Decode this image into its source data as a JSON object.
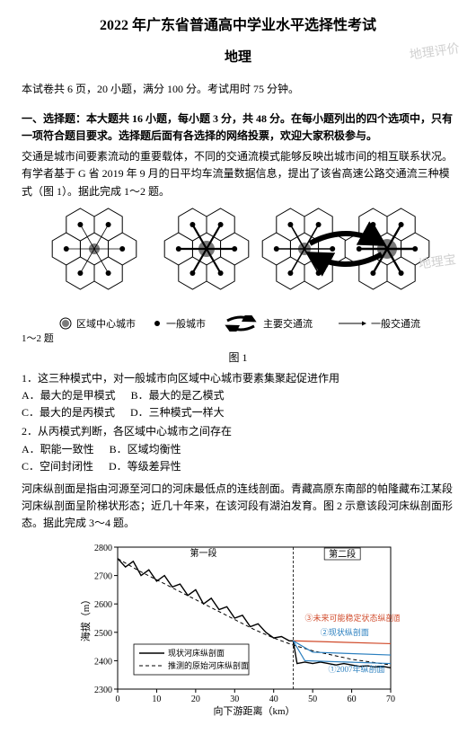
{
  "header": {
    "title": "2022 年广东省普通高中学业水平选择性考试",
    "subject": "地理",
    "info": "本试卷共 6 页，20 小题，满分 100 分。考试用时 75 分钟。"
  },
  "section1": {
    "heading": "一、选择题：本大题共 16 小题，每小题 3 分，共 48 分。在每小题列出的四个选项中，只有一项符合题目要求。选择题后面有各选择的网络投票，欢迎大家积极参与。",
    "context1": "交通是城市间要素流动的重要载体，不同的交通流模式能够反映出城市间的相互联系状况。有学者基于 G 省 2019 年 9 月的日平均车流量数据信息，提出了该省高速公路交通流三种模式（图 1）。据此完成 1～2 题。",
    "legend_items": [
      "区域中心城市",
      "一般城市",
      "主要交通流",
      "一般交通流"
    ],
    "fig1_caption": "图 1",
    "q1": {
      "stem": "1．这三种模式中，对一般城市向区域中心城市要素集聚起促进作用",
      "opts": [
        "A．最大的是甲模式",
        "B．最大的是乙模式",
        "C．最大的是丙模式",
        "D．三种模式一样大"
      ]
    },
    "q2": {
      "stem": "2．从丙模式判断，各区域中心城市之间存在",
      "opts": [
        "A．职能一致性",
        "B．区域均衡性",
        "C．空间封闭性",
        "D．等级差异性"
      ]
    },
    "context2": "河床纵剖面是指由河源至河口的河床最低点的连线剖面。青藏高原东南部的帕隆藏布江某段河床纵剖面呈阶梯状形态；近几十年来，在该河段有湖泊发育。图 2 示意该段河床纵剖面形态。据此完成 3～4 题。",
    "chart": {
      "type": "line",
      "xlabel": "向下游距离（km）",
      "ylabel": "海拔（m）",
      "xlim": [
        0,
        70
      ],
      "xtick_step": 10,
      "ylim": [
        2300,
        2800
      ],
      "ytick_step": 100,
      "background_color": "#ffffff",
      "axis_color": "#000000",
      "grid_color": "#d9d9d9",
      "series": [
        {
          "name": "现状河床纵剖面",
          "color": "#000000",
          "width": 1.4,
          "dash": "none"
        },
        {
          "name": "推测的原始河床纵剖面",
          "color": "#000000",
          "width": 1.0,
          "dash": "4,3"
        }
      ],
      "annotations": [
        {
          "text": "第一段",
          "color": "#000000"
        },
        {
          "text": "第二段",
          "color": "#000000"
        },
        {
          "text": "③未来可能稳定状态纵剖面",
          "color": "#d04a2a"
        },
        {
          "text": "②现状纵剖面",
          "color": "#2a7fbf"
        },
        {
          "text": "①2007年纵剖面",
          "color": "#2a7fbf"
        }
      ],
      "status_line_color": "#2a7fbf",
      "future_line_color": "#d04a2a",
      "legend_box": true,
      "data_current": [
        [
          0,
          2760
        ],
        [
          2,
          2730
        ],
        [
          4,
          2750
        ],
        [
          6,
          2700
        ],
        [
          8,
          2720
        ],
        [
          10,
          2680
        ],
        [
          12,
          2700
        ],
        [
          14,
          2660
        ],
        [
          16,
          2670
        ],
        [
          18,
          2630
        ],
        [
          20,
          2650
        ],
        [
          22,
          2600
        ],
        [
          24,
          2620
        ],
        [
          26,
          2580
        ],
        [
          28,
          2590
        ],
        [
          30,
          2550
        ],
        [
          32,
          2560
        ],
        [
          34,
          2520
        ],
        [
          36,
          2530
        ],
        [
          38,
          2500
        ],
        [
          40,
          2480
        ],
        [
          42,
          2485
        ],
        [
          44,
          2470
        ],
        [
          45,
          2470
        ],
        [
          46,
          2390
        ],
        [
          48,
          2395
        ],
        [
          50,
          2390
        ],
        [
          52,
          2395
        ],
        [
          54,
          2390
        ],
        [
          56,
          2385
        ],
        [
          58,
          2390
        ],
        [
          60,
          2385
        ],
        [
          62,
          2380
        ],
        [
          64,
          2382
        ],
        [
          66,
          2378
        ],
        [
          68,
          2380
        ],
        [
          70,
          2375
        ]
      ],
      "data_original": [
        [
          0,
          2760
        ],
        [
          5,
          2720
        ],
        [
          10,
          2685
        ],
        [
          15,
          2650
        ],
        [
          20,
          2615
        ],
        [
          25,
          2580
        ],
        [
          30,
          2545
        ],
        [
          35,
          2510
        ],
        [
          40,
          2480
        ],
        [
          45,
          2455
        ],
        [
          50,
          2435
        ],
        [
          55,
          2420
        ],
        [
          60,
          2405
        ],
        [
          65,
          2395
        ],
        [
          70,
          2385
        ]
      ],
      "stage2_lines": {
        "future": [
          [
            45,
            2470
          ],
          [
            70,
            2460
          ]
        ],
        "current": [
          [
            45,
            2470
          ],
          [
            50,
            2430
          ],
          [
            70,
            2420
          ]
        ],
        "y2007": [
          [
            45,
            2470
          ],
          [
            48,
            2400
          ],
          [
            70,
            2390
          ]
        ]
      }
    }
  },
  "watermarks": [
    "地理评价",
    "地理宝"
  ]
}
